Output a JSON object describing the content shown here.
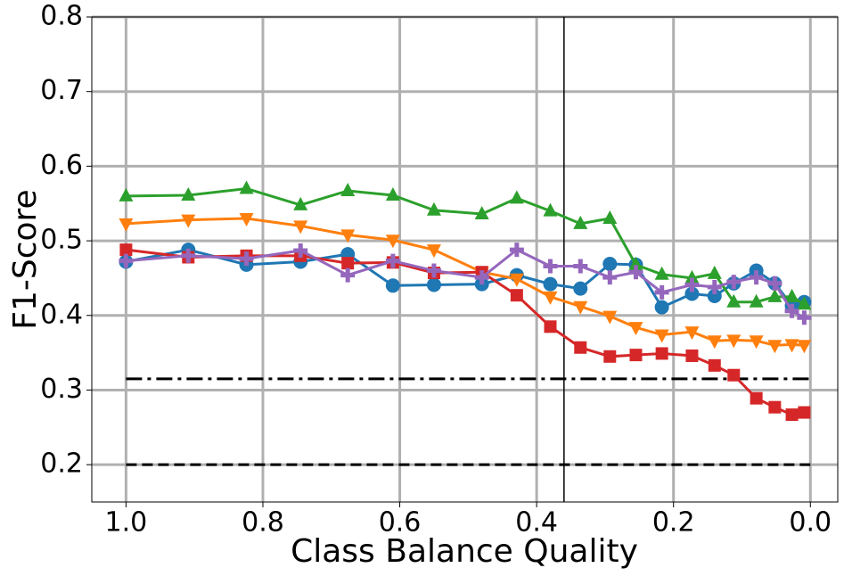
{
  "chart_data": {
    "type": "line",
    "xlabel": "Class Balance Quality",
    "ylabel": "F1-Score",
    "x": [
      1.0,
      0.909,
      0.824,
      0.745,
      0.676,
      0.61,
      0.55,
      0.48,
      0.429,
      0.38,
      0.336,
      0.293,
      0.255,
      0.217,
      0.173,
      0.14,
      0.112,
      0.079,
      0.052,
      0.027,
      0.009
    ],
    "series": [
      {
        "color": "#1f77b4",
        "marker": "circle",
        "values": [
          0.472,
          0.488,
          0.468,
          0.472,
          0.482,
          0.44,
          0.441,
          0.442,
          0.454,
          0.442,
          0.436,
          0.469,
          0.468,
          0.411,
          0.429,
          0.426,
          0.443,
          0.46,
          0.443,
          0.413,
          0.418
        ]
      },
      {
        "color": "#ff7f0e",
        "marker": "triangle-down",
        "values": [
          0.523,
          0.528,
          0.53,
          0.52,
          0.508,
          0.501,
          0.488,
          0.458,
          0.449,
          0.425,
          0.412,
          0.399,
          0.384,
          0.374,
          0.378,
          0.366,
          0.367,
          0.366,
          0.36,
          0.361,
          0.36
        ]
      },
      {
        "color": "#2ca02c",
        "marker": "triangle-up",
        "values": [
          0.56,
          0.561,
          0.57,
          0.548,
          0.567,
          0.561,
          0.541,
          0.536,
          0.557,
          0.54,
          0.523,
          0.53,
          0.468,
          0.455,
          0.45,
          0.456,
          0.418,
          0.418,
          0.425,
          0.425,
          0.415
        ]
      },
      {
        "color": "#d62728",
        "marker": "square",
        "values": [
          0.488,
          0.478,
          0.48,
          0.48,
          0.47,
          0.471,
          0.457,
          0.458,
          0.427,
          0.385,
          0.357,
          0.345,
          0.347,
          0.349,
          0.346,
          0.333,
          0.32,
          0.289,
          0.277,
          0.267,
          0.27
        ]
      },
      {
        "color": "#9467bd",
        "marker": "plus",
        "values": [
          0.473,
          0.48,
          0.476,
          0.487,
          0.454,
          0.473,
          0.46,
          0.451,
          0.488,
          0.466,
          0.466,
          0.451,
          0.458,
          0.431,
          0.441,
          0.438,
          0.445,
          0.451,
          0.443,
          0.406,
          0.397
        ]
      }
    ],
    "hlines": [
      {
        "y": 0.315,
        "x": [
          1.0,
          0.0
        ],
        "style": "dashdot",
        "color": "#000000"
      },
      {
        "y": 0.2,
        "x": [
          1.0,
          0.0
        ],
        "style": "dashed",
        "color": "#000000"
      }
    ],
    "vlines": [
      {
        "x": 0.36,
        "color": "#000000"
      }
    ],
    "xlim": [
      1.05,
      -0.04
    ],
    "ylim": [
      0.15,
      0.8
    ],
    "xticks": [
      {
        "value": 1,
        "label": "1.0"
      },
      0.8,
      0.6,
      0.4,
      0.2,
      {
        "value": 0,
        "label": "0.0"
      }
    ],
    "yticks": [
      0.2,
      0.3,
      0.4,
      0.5,
      0.6,
      0.7,
      0.8
    ],
    "grid": true
  }
}
